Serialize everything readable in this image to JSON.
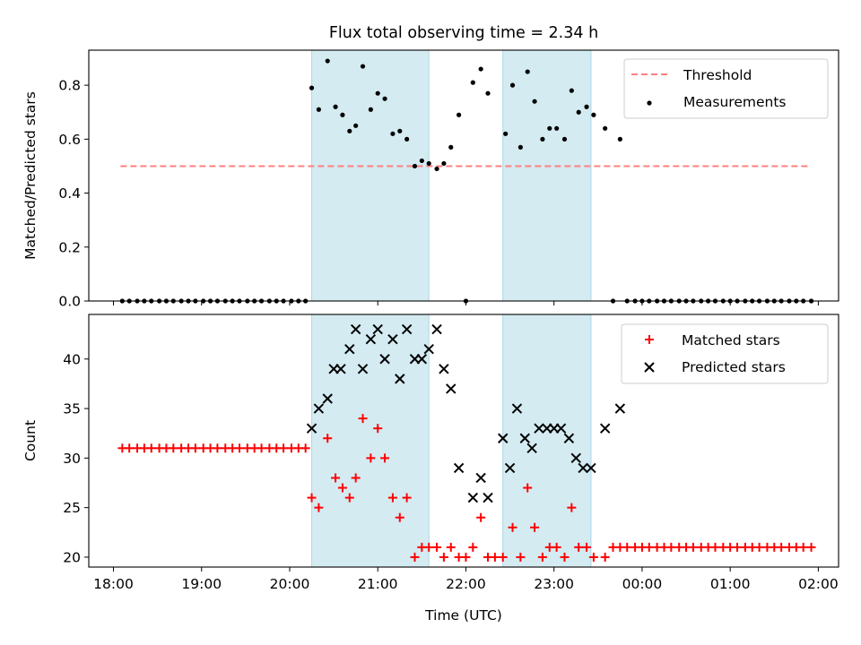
{
  "title": "Flux total observing time = 2.34 h",
  "colors": {
    "threshold": "#ff7f7f",
    "measurement": "#000000",
    "matched": "#ff0000",
    "predicted": "#000000",
    "span": "#add8e6"
  },
  "chart_data": [
    {
      "type": "scatter",
      "ylabel": "Matched/Predicted stars",
      "ylim": [
        0,
        0.93
      ],
      "yticks": [
        "0.0",
        "0.2",
        "0.4",
        "0.6",
        "0.8"
      ],
      "ytick_values": [
        0,
        0.2,
        0.4,
        0.6,
        0.8
      ],
      "threshold": {
        "name": "Threshold",
        "value": 0.5,
        "x_range": [
          18.08,
          25.92
        ],
        "style": "dashed"
      },
      "shaded_spans": [
        [
          20.25,
          21.58
        ],
        [
          22.42,
          23.42
        ]
      ],
      "legend": {
        "position": "upper right",
        "entries": [
          "Threshold",
          "Measurements"
        ]
      },
      "series": [
        {
          "name": "Measurements",
          "marker": "dot",
          "x": [
            18.1,
            18.18,
            18.27,
            18.35,
            18.43,
            18.52,
            18.6,
            18.68,
            18.77,
            18.85,
            18.93,
            19.02,
            19.1,
            19.18,
            19.27,
            19.35,
            19.43,
            19.52,
            19.6,
            19.68,
            19.77,
            19.85,
            19.93,
            20.02,
            20.1,
            20.18,
            20.25,
            20.33,
            20.43,
            20.52,
            20.6,
            20.68,
            20.75,
            20.83,
            20.92,
            21.0,
            21.08,
            21.17,
            21.25,
            21.33,
            21.42,
            21.5,
            21.58,
            21.67,
            21.75,
            21.83,
            21.92,
            22.0,
            22.08,
            22.17,
            22.25,
            22.45,
            22.53,
            22.62,
            22.7,
            22.78,
            22.87,
            22.95,
            23.03,
            23.12,
            23.2,
            23.28,
            23.37,
            23.45,
            23.58,
            23.67,
            23.75,
            23.83,
            23.92,
            24.0,
            24.08,
            24.17,
            24.25,
            24.33,
            24.42,
            24.5,
            24.58,
            24.67,
            24.75,
            24.83,
            24.92,
            25.0,
            25.08,
            25.17,
            25.25,
            25.33,
            25.42,
            25.5,
            25.58,
            25.67,
            25.75,
            25.83,
            25.92
          ],
          "y": [
            0,
            0,
            0,
            0,
            0,
            0,
            0,
            0,
            0,
            0,
            0,
            0,
            0,
            0,
            0,
            0,
            0,
            0,
            0,
            0,
            0,
            0,
            0,
            0,
            0,
            0,
            0.79,
            0.71,
            0.89,
            0.72,
            0.69,
            0.63,
            0.65,
            0.87,
            0.71,
            0.77,
            0.75,
            0.62,
            0.63,
            0.6,
            0.5,
            0.52,
            0.51,
            0.49,
            0.51,
            0.57,
            0.69,
            0,
            0.81,
            0.86,
            0.77,
            0.62,
            0.8,
            0.57,
            0.85,
            0.74,
            0.6,
            0.64,
            0.64,
            0.6,
            0.78,
            0.7,
            0.72,
            0.69,
            0.64,
            0,
            0.6,
            0,
            0,
            0,
            0,
            0,
            0,
            0,
            0,
            0,
            0,
            0,
            0,
            0,
            0,
            0,
            0,
            0,
            0,
            0,
            0,
            0,
            0,
            0,
            0,
            0,
            0
          ]
        }
      ]
    },
    {
      "type": "scatter",
      "xlabel": "Time (UTC)",
      "ylabel": "Count",
      "ylim": [
        19,
        44.5
      ],
      "yticks": [
        "20",
        "25",
        "30",
        "35",
        "40"
      ],
      "ytick_values": [
        20,
        25,
        30,
        35,
        40
      ],
      "xlim": [
        17.72,
        26.23
      ],
      "xticks": [
        "18:00",
        "19:00",
        "20:00",
        "21:00",
        "22:00",
        "23:00",
        "00:00",
        "01:00",
        "02:00"
      ],
      "xtick_values": [
        18,
        19,
        20,
        21,
        22,
        23,
        24,
        25,
        26
      ],
      "shaded_spans": [
        [
          20.25,
          21.58
        ],
        [
          22.42,
          23.42
        ]
      ],
      "legend": {
        "position": "upper right",
        "entries": [
          "Matched stars",
          "Predicted stars"
        ]
      },
      "series": [
        {
          "name": "Matched stars",
          "marker": "plus",
          "x": [
            18.1,
            18.18,
            18.27,
            18.35,
            18.43,
            18.52,
            18.6,
            18.68,
            18.77,
            18.85,
            18.93,
            19.02,
            19.1,
            19.18,
            19.27,
            19.35,
            19.43,
            19.52,
            19.6,
            19.68,
            19.77,
            19.85,
            19.93,
            20.02,
            20.1,
            20.18,
            20.25,
            20.33,
            20.43,
            20.52,
            20.6,
            20.68,
            20.75,
            20.83,
            20.92,
            21.0,
            21.08,
            21.17,
            21.25,
            21.33,
            21.42,
            21.5,
            21.58,
            21.67,
            21.75,
            21.83,
            21.92,
            22.0,
            22.08,
            22.17,
            22.25,
            22.33,
            22.42,
            22.53,
            22.62,
            22.7,
            22.78,
            22.87,
            22.95,
            23.03,
            23.12,
            23.2,
            23.28,
            23.37,
            23.45,
            23.58,
            23.67,
            23.75,
            23.83,
            23.92,
            24.0,
            24.08,
            24.17,
            24.25,
            24.33,
            24.42,
            24.5,
            24.58,
            24.67,
            24.75,
            24.83,
            24.92,
            25.0,
            25.08,
            25.17,
            25.25,
            25.33,
            25.42,
            25.5,
            25.58,
            25.67,
            25.75,
            25.83,
            25.92
          ],
          "y": [
            31,
            31,
            31,
            31,
            31,
            31,
            31,
            31,
            31,
            31,
            31,
            31,
            31,
            31,
            31,
            31,
            31,
            31,
            31,
            31,
            31,
            31,
            31,
            31,
            31,
            31,
            26,
            25,
            32,
            28,
            27,
            26,
            28,
            34,
            30,
            33,
            30,
            26,
            24,
            26,
            20,
            21,
            21,
            21,
            20,
            21,
            20,
            20,
            21,
            24,
            20,
            20,
            20,
            23,
            20,
            27,
            23,
            20,
            21,
            21,
            20,
            25,
            21,
            21,
            20,
            20,
            21,
            21,
            21,
            21,
            21,
            21,
            21,
            21,
            21,
            21,
            21,
            21,
            21,
            21,
            21,
            21,
            21,
            21,
            21,
            21,
            21,
            21,
            21,
            21,
            21,
            21,
            21,
            21
          ]
        },
        {
          "name": "Predicted stars",
          "marker": "x",
          "x": [
            20.25,
            20.33,
            20.43,
            20.5,
            20.58,
            20.68,
            20.75,
            20.83,
            20.92,
            21.0,
            21.08,
            21.17,
            21.25,
            21.33,
            21.42,
            21.5,
            21.58,
            21.67,
            21.75,
            21.83,
            21.92,
            22.08,
            22.17,
            22.25,
            22.42,
            22.5,
            22.58,
            22.67,
            22.75,
            22.83,
            22.92,
            23.0,
            23.08,
            23.17,
            23.25,
            23.33,
            23.42,
            23.58,
            23.75
          ],
          "y": [
            33,
            35,
            36,
            39,
            39,
            41,
            43,
            39,
            42,
            43,
            40,
            42,
            38,
            43,
            40,
            40,
            41,
            43,
            39,
            37,
            29,
            26,
            28,
            26,
            32,
            29,
            35,
            32,
            31,
            33,
            33,
            33,
            33,
            32,
            30,
            29,
            29,
            33,
            35
          ]
        }
      ]
    }
  ]
}
